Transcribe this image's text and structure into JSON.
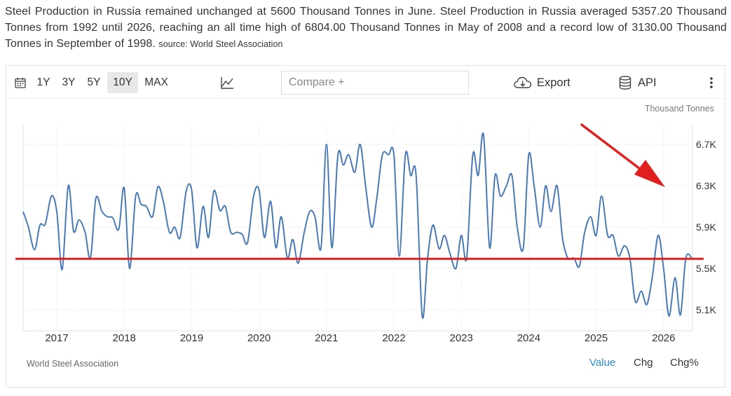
{
  "summary": {
    "text": "Steel Production in Russia remained unchanged at 5600 Thousand Tonnes in June. Steel Production in Russia averaged 5357.20 Thousand Tonnes from 1992 until 2026, reaching an all time high of 6804.00 Thousand Tonnes in May of 2008 and a record low of 3130.00 Thousand Tonnes in September of 1998.",
    "source_label": "source: World Steel Association"
  },
  "toolbar": {
    "ranges": [
      "1Y",
      "3Y",
      "5Y",
      "10Y",
      "MAX"
    ],
    "selected_range": "10Y",
    "compare_placeholder": "Compare +",
    "export_label": "Export",
    "api_label": "API"
  },
  "chart_meta": {
    "unit_label": "Thousand Tonnes",
    "footer_source": "World Steel Association",
    "tabs": [
      "Value",
      "Chg",
      "Chg%"
    ],
    "active_tab": "Value",
    "line_color": "#4a7ab5",
    "annotation_color": "#e0201f"
  },
  "chart_data": {
    "type": "line",
    "title": "",
    "xlabel": "",
    "ylabel": "Thousand Tonnes",
    "x_tick_labels": [
      "2017",
      "2018",
      "2019",
      "2020",
      "2021",
      "2022",
      "2023",
      "2024",
      "2025",
      "2026"
    ],
    "y_tick_labels": [
      "5.1K",
      "5.5K",
      "5.9K",
      "6.3K",
      "6.7K"
    ],
    "y_ticks": [
      5100,
      5500,
      5900,
      6300,
      6700
    ],
    "ylim": [
      4950,
      6900
    ],
    "xlim": [
      2016.5,
      2026.46
    ],
    "grid": true,
    "axis_side": "right",
    "series": [
      {
        "values": [
          [
            2016.5,
            6050
          ],
          [
            2016.58,
            5900
          ],
          [
            2016.67,
            5680
          ],
          [
            2016.75,
            5920
          ],
          [
            2016.83,
            5930
          ],
          [
            2016.92,
            6200
          ],
          [
            2017.0,
            6050
          ],
          [
            2017.08,
            5490
          ],
          [
            2017.17,
            6300
          ],
          [
            2017.25,
            5860
          ],
          [
            2017.33,
            5970
          ],
          [
            2017.42,
            5850
          ],
          [
            2017.5,
            5600
          ],
          [
            2017.58,
            6180
          ],
          [
            2017.67,
            6050
          ],
          [
            2017.75,
            6000
          ],
          [
            2017.83,
            5990
          ],
          [
            2017.92,
            5880
          ],
          [
            2018.0,
            6280
          ],
          [
            2018.08,
            5500
          ],
          [
            2018.17,
            6200
          ],
          [
            2018.25,
            6120
          ],
          [
            2018.33,
            6100
          ],
          [
            2018.42,
            6000
          ],
          [
            2018.5,
            6290
          ],
          [
            2018.58,
            6150
          ],
          [
            2018.67,
            5850
          ],
          [
            2018.75,
            5900
          ],
          [
            2018.83,
            5800
          ],
          [
            2018.92,
            6250
          ],
          [
            2019.0,
            6260
          ],
          [
            2019.08,
            5700
          ],
          [
            2019.17,
            6100
          ],
          [
            2019.25,
            5800
          ],
          [
            2019.33,
            6250
          ],
          [
            2019.42,
            6060
          ],
          [
            2019.5,
            6100
          ],
          [
            2019.58,
            5850
          ],
          [
            2019.67,
            5850
          ],
          [
            2019.75,
            5830
          ],
          [
            2019.83,
            5750
          ],
          [
            2019.92,
            6200
          ],
          [
            2020.0,
            6260
          ],
          [
            2020.08,
            5800
          ],
          [
            2020.17,
            6150
          ],
          [
            2020.25,
            5700
          ],
          [
            2020.33,
            6000
          ],
          [
            2020.42,
            5600
          ],
          [
            2020.5,
            5780
          ],
          [
            2020.58,
            5550
          ],
          [
            2020.67,
            5850
          ],
          [
            2020.75,
            6050
          ],
          [
            2020.83,
            6000
          ],
          [
            2020.92,
            5700
          ],
          [
            2021.0,
            6700
          ],
          [
            2021.08,
            5700
          ],
          [
            2021.17,
            6600
          ],
          [
            2021.25,
            6500
          ],
          [
            2021.33,
            6600
          ],
          [
            2021.42,
            6430
          ],
          [
            2021.5,
            6700
          ],
          [
            2021.58,
            6300
          ],
          [
            2021.67,
            5900
          ],
          [
            2021.75,
            6200
          ],
          [
            2021.83,
            6600
          ],
          [
            2021.92,
            6600
          ],
          [
            2022.0,
            6600
          ],
          [
            2022.08,
            5620
          ],
          [
            2022.17,
            6600
          ],
          [
            2022.25,
            6400
          ],
          [
            2022.33,
            6400
          ],
          [
            2022.42,
            5040
          ],
          [
            2022.5,
            5600
          ],
          [
            2022.58,
            5920
          ],
          [
            2022.67,
            5690
          ],
          [
            2022.75,
            5820
          ],
          [
            2022.83,
            5650
          ],
          [
            2022.92,
            5500
          ],
          [
            2023.0,
            5820
          ],
          [
            2023.08,
            5600
          ],
          [
            2023.17,
            6600
          ],
          [
            2023.25,
            6400
          ],
          [
            2023.33,
            6790
          ],
          [
            2023.42,
            5700
          ],
          [
            2023.5,
            6400
          ],
          [
            2023.58,
            6200
          ],
          [
            2023.67,
            6300
          ],
          [
            2023.75,
            6400
          ],
          [
            2023.83,
            5900
          ],
          [
            2023.92,
            5700
          ],
          [
            2024.0,
            6600
          ],
          [
            2024.08,
            6300
          ],
          [
            2024.17,
            5900
          ],
          [
            2024.25,
            6300
          ],
          [
            2024.33,
            6050
          ],
          [
            2024.42,
            6300
          ],
          [
            2024.5,
            5800
          ],
          [
            2024.58,
            5600
          ],
          [
            2024.67,
            5600
          ],
          [
            2024.75,
            5520
          ],
          [
            2024.83,
            5850
          ],
          [
            2024.92,
            6000
          ],
          [
            2025.0,
            5820
          ],
          [
            2025.08,
            6200
          ],
          [
            2025.17,
            5820
          ],
          [
            2025.25,
            5820
          ],
          [
            2025.33,
            5620
          ],
          [
            2025.42,
            5720
          ],
          [
            2025.5,
            5600
          ],
          [
            2025.58,
            5180
          ],
          [
            2025.67,
            5280
          ],
          [
            2025.75,
            5150
          ],
          [
            2025.83,
            5400
          ],
          [
            2025.92,
            5820
          ],
          [
            2026.0,
            5500
          ],
          [
            2026.08,
            5040
          ],
          [
            2026.17,
            5410
          ],
          [
            2026.25,
            5050
          ],
          [
            2026.33,
            5600
          ],
          [
            2026.42,
            5600
          ]
        ]
      }
    ],
    "reference_line": 5600,
    "annotation": "arrow pointing down toward the latest value"
  }
}
